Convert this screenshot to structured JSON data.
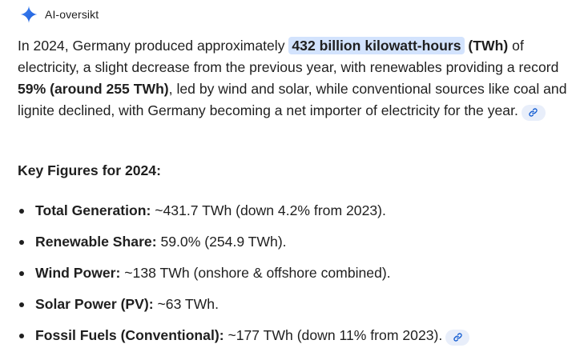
{
  "header": {
    "title": "AI-oversikt",
    "icon": "gemini-sparkle-icon"
  },
  "summary": {
    "t1": "In 2024, Germany produced approximately ",
    "highlight": "432 billion kilowatt-hours",
    "t2": " (TWh)",
    "t3": " of electricity, a slight decrease from the previous year, with renewables providing a record ",
    "b2": "59% (around 255 TWh)",
    "t4": ", led by wind and solar, while conventional sources like coal and lignite declined, with Germany becoming a net importer of electricity for the year."
  },
  "key_figures": {
    "heading": "Key Figures for 2024:",
    "items": [
      {
        "label": "Total Generation:",
        "text": " ~431.7 TWh (down 4.2% from 2023)."
      },
      {
        "label": "Renewable Share:",
        "text": " 59.0% (254.9 TWh)."
      },
      {
        "label": "Wind Power:",
        "text": " ~138 TWh (onshore & offshore combined)."
      },
      {
        "label": "Solar Power (PV):",
        "text": " ~63 TWh."
      },
      {
        "label": "Fossil Fuels (Conventional):",
        "text": " ~177 TWh (down 11% from 2023)."
      }
    ]
  },
  "colors": {
    "highlight_bg": "#d3e3fd",
    "link_chip_bg": "#e8eefa",
    "link_icon": "#0b57d0",
    "text": "#1f1f1f"
  }
}
